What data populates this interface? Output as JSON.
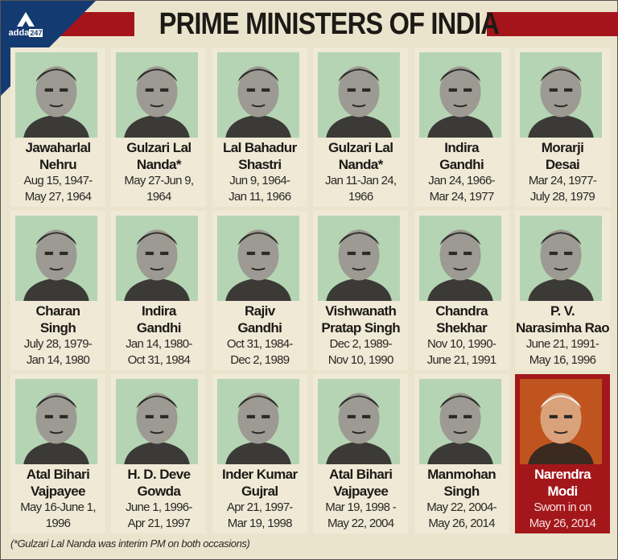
{
  "header": {
    "title": "PRIME MINISTERS OF INDIA",
    "logo_text": "adda",
    "logo_badge": "247"
  },
  "colors": {
    "red": "#a5141a",
    "navy": "#143a72",
    "photo_bg": "#b5d4b3",
    "highlight": "#a3171b"
  },
  "prime_ministers": [
    {
      "name_line1": "Jawaharlal",
      "name_line2": "Nehru",
      "dates_line1": "Aug 15, 1947-",
      "dates_line2": "May 27, 1964"
    },
    {
      "name_line1": "Gulzari Lal",
      "name_line2": "Nanda*",
      "dates_line1": "May 27-Jun 9,",
      "dates_line2": "1964"
    },
    {
      "name_line1": "Lal Bahadur",
      "name_line2": "Shastri",
      "dates_line1": "Jun 9, 1964-",
      "dates_line2": "Jan 11, 1966"
    },
    {
      "name_line1": "Gulzari Lal",
      "name_line2": "Nanda*",
      "dates_line1": "Jan 11-Jan 24,",
      "dates_line2": "1966"
    },
    {
      "name_line1": "Indira",
      "name_line2": "Gandhi",
      "dates_line1": "Jan 24, 1966-",
      "dates_line2": "Mar 24, 1977"
    },
    {
      "name_line1": "Morarji",
      "name_line2": "Desai",
      "dates_line1": "Mar 24, 1977-",
      "dates_line2": "July 28, 1979"
    },
    {
      "name_line1": "Charan",
      "name_line2": "Singh",
      "dates_line1": "July 28, 1979-",
      "dates_line2": "Jan 14, 1980"
    },
    {
      "name_line1": "Indira",
      "name_line2": "Gandhi",
      "dates_line1": "Jan 14, 1980-",
      "dates_line2": "Oct 31, 1984"
    },
    {
      "name_line1": "Rajiv",
      "name_line2": "Gandhi",
      "dates_line1": "Oct 31, 1984-",
      "dates_line2": "Dec 2, 1989"
    },
    {
      "name_line1": "Vishwanath",
      "name_line2": "Pratap Singh",
      "dates_line1": "Dec 2, 1989-",
      "dates_line2": "Nov 10, 1990"
    },
    {
      "name_line1": "Chandra",
      "name_line2": "Shekhar",
      "dates_line1": "Nov 10, 1990-",
      "dates_line2": "June 21, 1991"
    },
    {
      "name_line1": "P. V.",
      "name_line2": "Narasimha Rao",
      "dates_line1": "June 21, 1991-",
      "dates_line2": "May 16, 1996"
    },
    {
      "name_line1": "Atal Bihari",
      "name_line2": "Vajpayee",
      "dates_line1": "May 16-June 1,",
      "dates_line2": "1996"
    },
    {
      "name_line1": "H. D. Deve",
      "name_line2": "Gowda",
      "dates_line1": "June 1, 1996-",
      "dates_line2": "Apr 21, 1997"
    },
    {
      "name_line1": "Inder Kumar",
      "name_line2": "Gujral",
      "dates_line1": "Apr 21, 1997-",
      "dates_line2": "Mar 19, 1998"
    },
    {
      "name_line1": "Atal Bihari",
      "name_line2": "Vajpayee",
      "dates_line1": "Mar 19, 1998 -",
      "dates_line2": "May 22, 2004"
    },
    {
      "name_line1": "Manmohan",
      "name_line2": "Singh",
      "dates_line1": "May 22, 2004-",
      "dates_line2": "May 26, 2014"
    },
    {
      "name_line1": "Narendra",
      "name_line2": "Modi",
      "dates_line1": "Sworn in on",
      "dates_line2": "May 26, 2014",
      "highlight": true
    }
  ],
  "footnote": "(*Gulzari Lal Nanda was interim PM on both occasions)"
}
